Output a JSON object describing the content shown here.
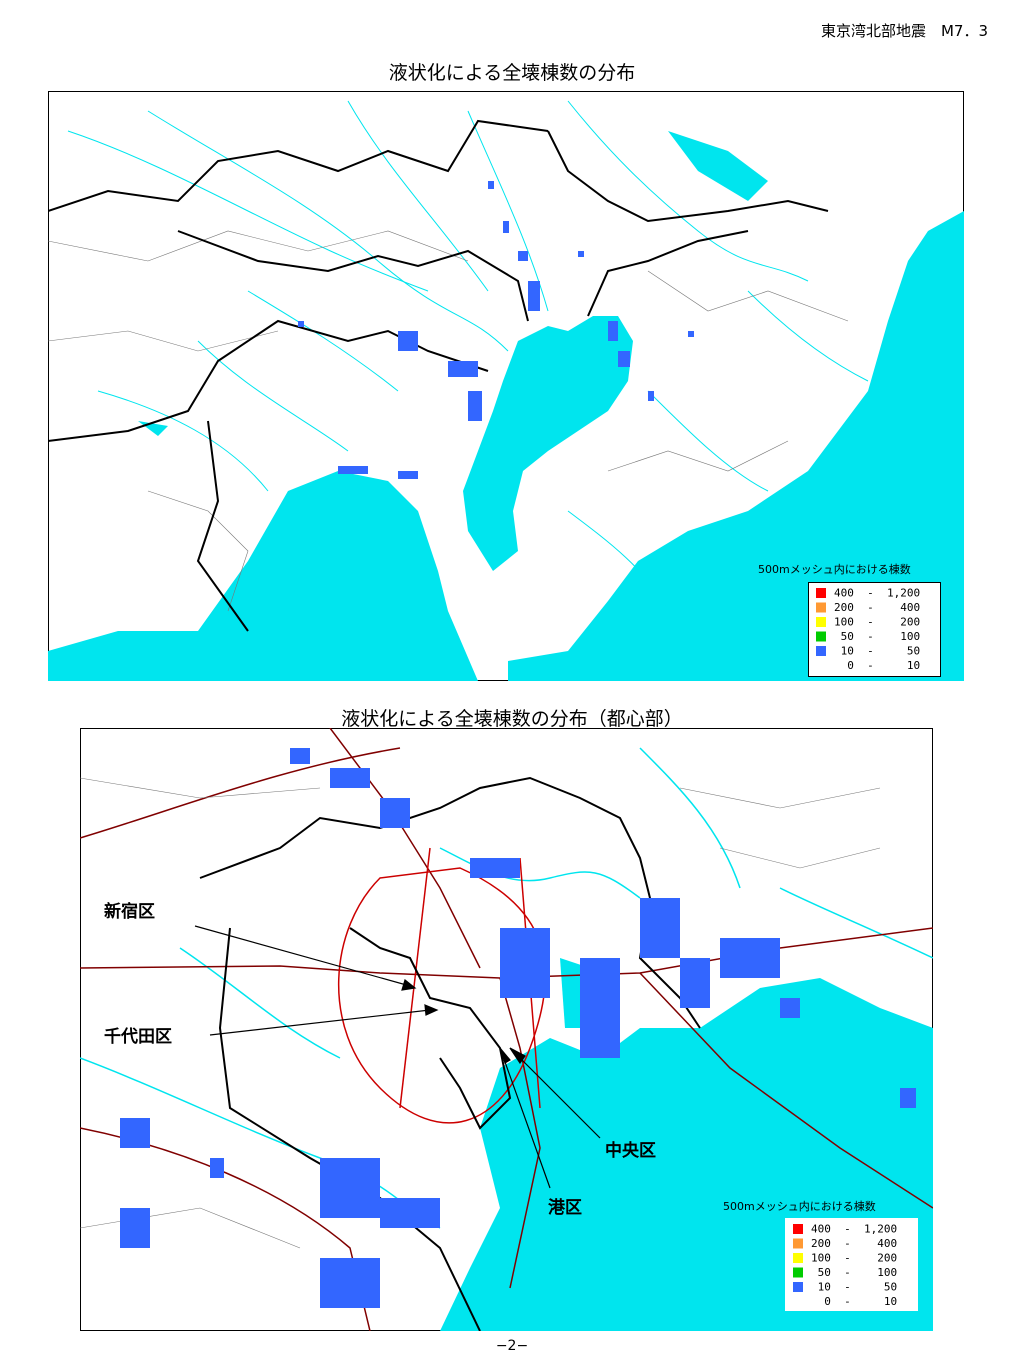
{
  "header": {
    "caption": "東京湾北部地震　M7．3"
  },
  "maps": [
    {
      "title": "液状化による全壊棟数の分布",
      "legend": {
        "title": "500mメッシュ内における棟数",
        "items": [
          {
            "color": "#ff0000",
            "range": "400  -  1,200"
          },
          {
            "color": "#ff9933",
            "range": "200  -    400"
          },
          {
            "color": "#ffff00",
            "range": "100  -    200"
          },
          {
            "color": "#00cc00",
            "range": " 50  -    100"
          },
          {
            "color": "#3366ff",
            "range": " 10  -     50"
          },
          {
            "color": "#ffffff",
            "range": "  0  -     10"
          }
        ]
      }
    },
    {
      "title": "液状化による全壊棟数の分布（都心部）",
      "labels": [
        "新宿区",
        "千代田区",
        "中央区",
        "港区"
      ],
      "legend": {
        "title": "500mメッシュ内における棟数",
        "items": [
          {
            "color": "#ff0000",
            "range": "400  -  1,200"
          },
          {
            "color": "#ff9933",
            "range": "200  -    400"
          },
          {
            "color": "#ffff00",
            "range": "100  -    200"
          },
          {
            "color": "#00cc00",
            "range": " 50  -    100"
          },
          {
            "color": "#3366ff",
            "range": " 10  -     50"
          },
          {
            "color": "#ffffff",
            "range": "  0  -     10"
          }
        ]
      }
    }
  ],
  "footer": {
    "page": "−2−"
  }
}
